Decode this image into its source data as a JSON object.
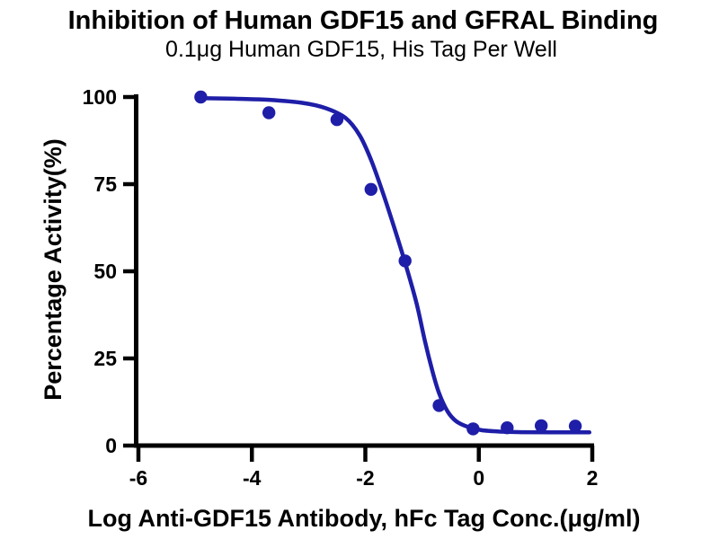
{
  "colors": {
    "curve": "#1e1ea8",
    "marker": "#1e1ea8",
    "axis": "#000000",
    "text": "#000000",
    "background": "#ffffff"
  },
  "chart_data": {
    "type": "scatter",
    "title": "Inhibition of Human GDF15 and GFRAL Binding",
    "subtitle": "0.1μg Human GDF15, His Tag Per Well",
    "xlabel": "Log Anti-GDF15 Antibody, hFc Tag Conc.(μg/ml)",
    "ylabel": "Percentage Activity(%)",
    "xlim": [
      -6,
      2
    ],
    "ylim": [
      0,
      100
    ],
    "x_ticks": [
      -6,
      -4,
      -2,
      0,
      2
    ],
    "y_ticks": [
      0,
      25,
      50,
      75,
      100
    ],
    "grid": false,
    "legend": "none",
    "series": [
      {
        "marker_color": "#1e1ea8",
        "line_color": "#1e1ea8",
        "points": [
          {
            "x": -4.9,
            "y": 100
          },
          {
            "x": -3.7,
            "y": 95.5
          },
          {
            "x": -2.5,
            "y": 93.5
          },
          {
            "x": -1.9,
            "y": 73.5
          },
          {
            "x": -1.3,
            "y": 53
          },
          {
            "x": -0.7,
            "y": 11.5
          },
          {
            "x": -0.1,
            "y": 4.8
          },
          {
            "x": 0.5,
            "y": 5.1
          },
          {
            "x": 1.1,
            "y": 5.7
          },
          {
            "x": 1.7,
            "y": 5.6
          }
        ],
        "fit_curve": [
          [
            -4.92,
            99.7
          ],
          [
            -4.3,
            99.5
          ],
          [
            -3.7,
            99.2
          ],
          [
            -3.1,
            98.3
          ],
          [
            -2.7,
            96.8
          ],
          [
            -2.35,
            94.0
          ],
          [
            -2.1,
            89.0
          ],
          [
            -1.9,
            82.0
          ],
          [
            -1.7,
            73.0
          ],
          [
            -1.5,
            63.0
          ],
          [
            -1.3,
            52.5
          ],
          [
            -1.1,
            41.0
          ],
          [
            -0.95,
            30.0
          ],
          [
            -0.82,
            21.5
          ],
          [
            -0.7,
            15.0
          ],
          [
            -0.55,
            9.8
          ],
          [
            -0.4,
            7.0
          ],
          [
            -0.2,
            5.4
          ],
          [
            0.05,
            4.4
          ],
          [
            0.4,
            4.0
          ],
          [
            0.8,
            3.85
          ],
          [
            1.3,
            3.8
          ],
          [
            1.95,
            3.8
          ]
        ]
      }
    ]
  }
}
